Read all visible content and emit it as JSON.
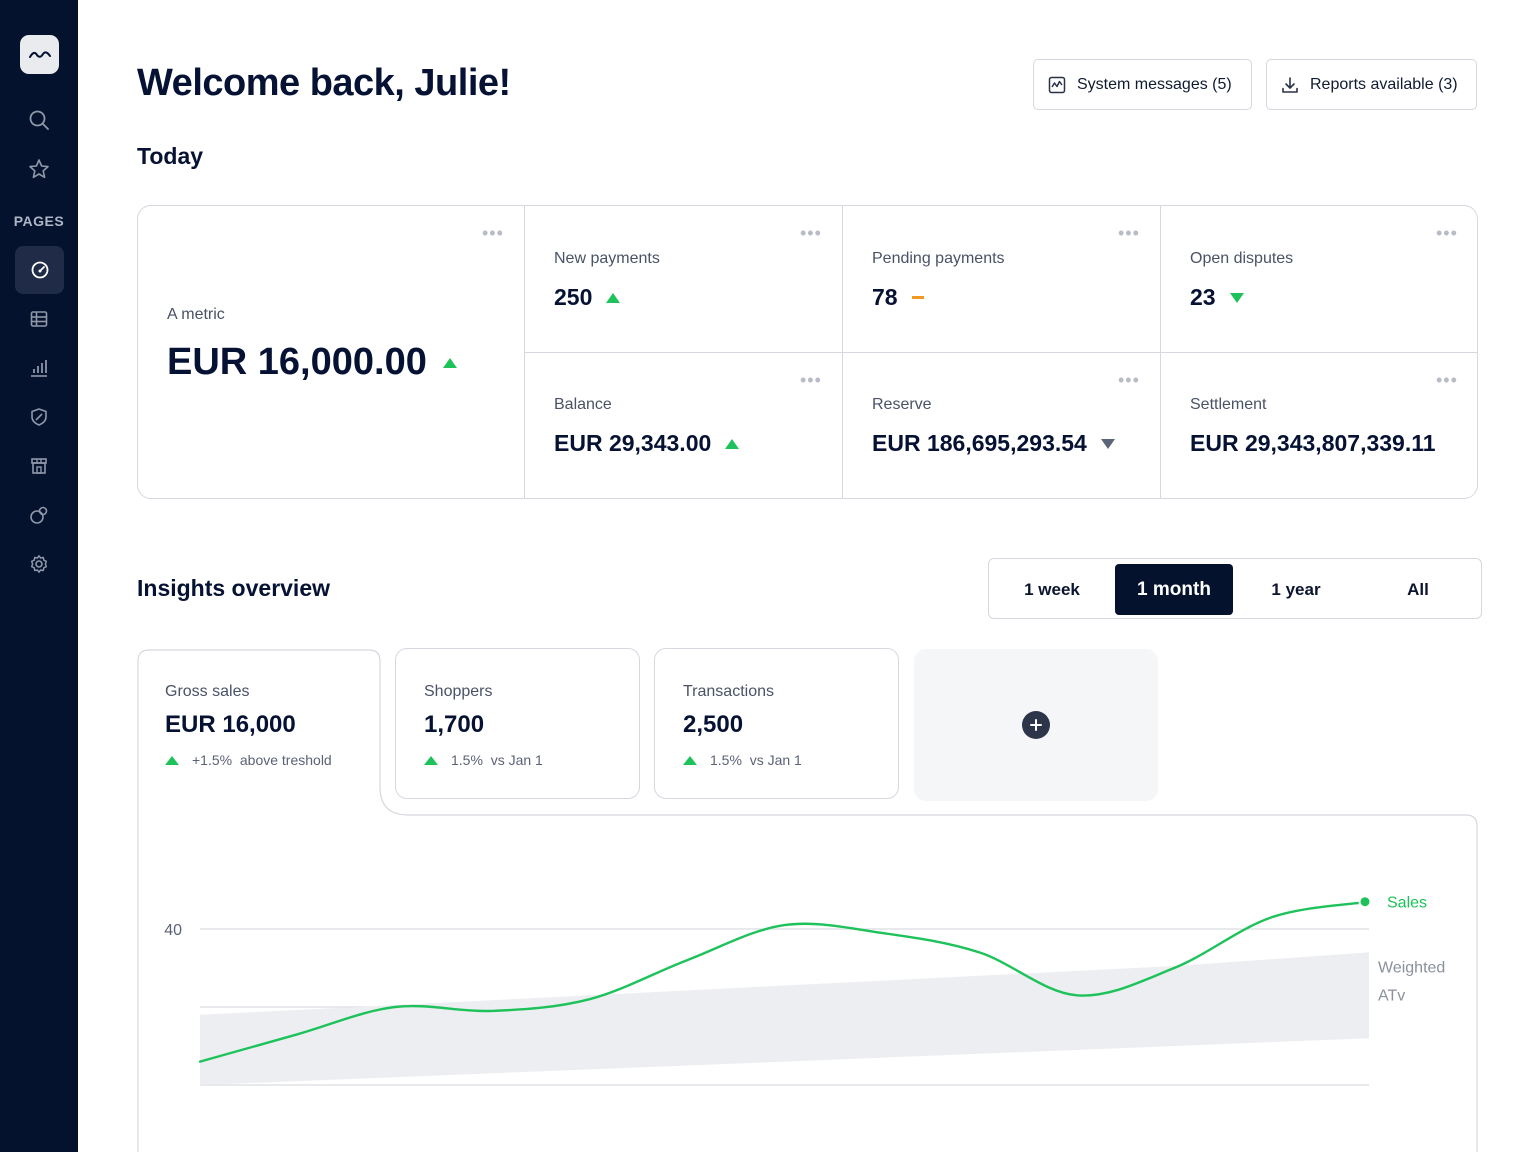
{
  "sidebar": {
    "section_label": "PAGES",
    "icons": [
      "logo-wave-icon",
      "search-icon",
      "star-icon",
      "dashboard-icon",
      "table-icon",
      "bar-chart-icon",
      "shield-icon",
      "store-icon",
      "circles-icon",
      "gear-icon"
    ]
  },
  "header": {
    "title": "Welcome back, Julie!",
    "system_messages": "System messages (5)",
    "reports_available": "Reports available (3)"
  },
  "today": {
    "title": "Today",
    "main_metric": {
      "label": "A metric",
      "value": "EUR 16,000.00",
      "trend": "up"
    },
    "metrics": [
      {
        "label": "New payments",
        "value": "250",
        "trend": "up"
      },
      {
        "label": "Pending payments",
        "value": "78",
        "trend": "flat"
      },
      {
        "label": "Open disputes",
        "value": "23",
        "trend": "down"
      },
      {
        "label": "Balance",
        "value": "EUR 29,343.00",
        "trend": "up"
      },
      {
        "label": "Reserve",
        "value": "EUR 186,695,293.54",
        "trend": "down"
      },
      {
        "label": "Settlement",
        "value": "EUR 29,343,807,339.11",
        "trend": "none"
      }
    ]
  },
  "insights": {
    "title": "Insights overview",
    "ranges": [
      "1 week",
      "1 month",
      "1 year",
      "All"
    ],
    "selected_range": "1 month",
    "cards": [
      {
        "label": "Gross sales",
        "value": "EUR 16,000",
        "change": "+1.5%",
        "note": "above treshold"
      },
      {
        "label": "Shoppers",
        "value": "1,700",
        "change": "1.5%",
        "note": "vs Jan 1"
      },
      {
        "label": "Transactions",
        "value": "2,500",
        "change": "1.5%",
        "note": "vs Jan 1"
      }
    ]
  },
  "colors": {
    "sidebar_bg": "#04122e",
    "accent_green": "#1ec25a",
    "warning_orange": "#f29a1f",
    "band_gray": "#eceef1"
  },
  "chart_data": {
    "type": "line",
    "y_tick_labels": [
      "40"
    ],
    "ylim": [
      0,
      60
    ],
    "x": [
      0,
      1,
      2,
      3,
      4,
      5,
      6,
      7,
      8,
      9,
      10,
      11,
      12
    ],
    "series": [
      {
        "name": "Sales",
        "values": [
          6,
          13,
          20,
          19,
          22,
          32,
          41,
          39,
          34,
          23,
          30,
          43,
          47
        ]
      },
      {
        "name": "Weighted ATv",
        "lower": [
          0,
          2,
          4,
          6,
          8,
          10,
          12
        ],
        "upper": [
          18,
          20.5,
          23,
          25.5,
          28,
          30.5,
          34
        ]
      }
    ]
  }
}
